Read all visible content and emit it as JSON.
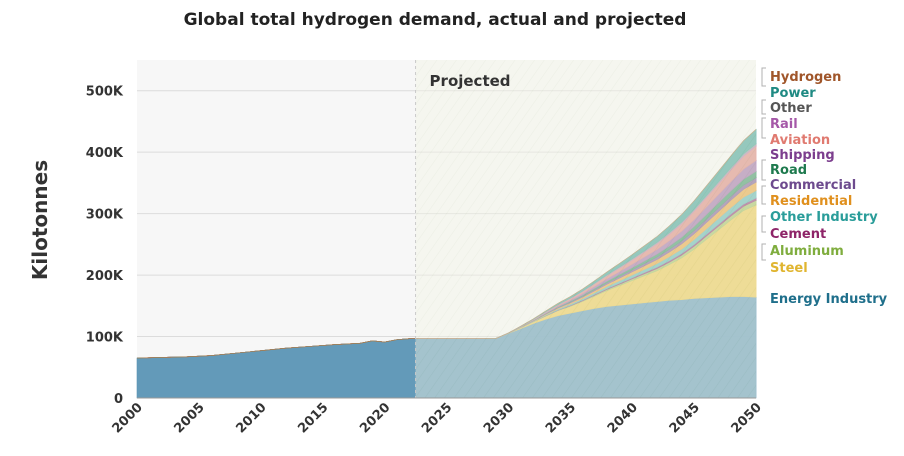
{
  "chart_data": {
    "type": "area",
    "title": "Global total hydrogen demand, actual and projected",
    "xlabel": "",
    "ylabel": "Kilotonnes",
    "xlim": [
      2000,
      2050
    ],
    "ylim": [
      0,
      550000
    ],
    "x_ticks": [
      "2000",
      "2005",
      "2010",
      "2015",
      "2020",
      "2025",
      "2030",
      "2035",
      "2040",
      "2045",
      "2050"
    ],
    "y_ticks": [
      {
        "value": 0,
        "label": "0"
      },
      {
        "value": 100000,
        "label": "100K"
      },
      {
        "value": 200000,
        "label": "200K"
      },
      {
        "value": 300000,
        "label": "300K"
      },
      {
        "value": 400000,
        "label": "400K"
      },
      {
        "value": 500000,
        "label": "500K"
      }
    ],
    "projected_start": 2022.5,
    "projected_label": "Projected",
    "x": [
      2000,
      2002,
      2004,
      2006,
      2008,
      2010,
      2012,
      2014,
      2016,
      2018,
      2019,
      2020,
      2021,
      2022,
      2023,
      2024,
      2025,
      2026,
      2027,
      2028,
      2029,
      2030,
      2031,
      2032,
      2033,
      2034,
      2035,
      2036,
      2037,
      2038,
      2039,
      2040,
      2041,
      2042,
      2043,
      2044,
      2045,
      2046,
      2047,
      2048,
      2049,
      2050
    ],
    "series": [
      {
        "name": "Energy Industry",
        "color": "#5b95b5",
        "label_color": "#1f6f8b",
        "values": [
          65000,
          66000,
          67000,
          69000,
          73000,
          77000,
          81000,
          84000,
          87000,
          89000,
          93000,
          91000,
          95000,
          96500,
          96500,
          96500,
          96500,
          96500,
          96500,
          96500,
          97000,
          105000,
          113000,
          121000,
          128000,
          134000,
          138000,
          142000,
          146000,
          149000,
          151000,
          153000,
          155000,
          157000,
          159000,
          160000,
          162000,
          163000,
          164000,
          165000,
          165000,
          164000
        ]
      },
      {
        "name": "Steel",
        "color": "#e8c44d",
        "label_color": "#e0b530",
        "values": [
          0,
          0,
          0,
          0,
          0,
          0,
          0,
          0,
          0,
          0,
          0,
          0,
          0,
          0,
          0,
          0,
          0,
          0,
          0,
          0,
          0,
          500,
          1500,
          3000,
          5000,
          8000,
          11000,
          15000,
          20000,
          26000,
          32000,
          38000,
          44000,
          50000,
          58000,
          68000,
          80000,
          95000,
          110000,
          125000,
          140000,
          150000
        ]
      },
      {
        "name": "Aluminum",
        "color": "#a0bd62",
        "label_color": "#7fad3e",
        "values": [
          0,
          0,
          0,
          0,
          0,
          0,
          0,
          0,
          0,
          0,
          0,
          0,
          0,
          0,
          0,
          0,
          0,
          0,
          0,
          0,
          0,
          0,
          0,
          0,
          500,
          700,
          1000,
          1300,
          1600,
          2000,
          2400,
          2800,
          3200,
          3600,
          4000,
          4500,
          5000,
          5500,
          6000,
          6500,
          7000,
          7500
        ]
      },
      {
        "name": "Cement",
        "color": "#8e3a78",
        "label_color": "#8e2468",
        "values": [
          0,
          0,
          0,
          0,
          0,
          0,
          0,
          0,
          0,
          0,
          0,
          0,
          0,
          0,
          0,
          0,
          0,
          0,
          0,
          0,
          0,
          0,
          0,
          0,
          400,
          500,
          800,
          1000,
          1200,
          1400,
          1600,
          1800,
          2000,
          2200,
          2400,
          2600,
          2800,
          3000,
          3200,
          3400,
          3600,
          3800
        ]
      },
      {
        "name": "Other Industry",
        "color": "#5eb3b0",
        "label_color": "#2a9d9a",
        "values": [
          0,
          0,
          0,
          0,
          0,
          0,
          0,
          0,
          0,
          0,
          0,
          0,
          0,
          0,
          0,
          0,
          0,
          0,
          0,
          0,
          0,
          300,
          500,
          800,
          1200,
          1600,
          2000,
          2500,
          3000,
          3500,
          4000,
          4600,
          5200,
          5800,
          6500,
          7200,
          8000,
          8800,
          9600,
          10400,
          11200,
          12000
        ]
      },
      {
        "name": "Residential",
        "color": "#e6a23c",
        "label_color": "#e0901e",
        "values": [
          0,
          0,
          0,
          0,
          0,
          0,
          0,
          0,
          0,
          0,
          0,
          0,
          0,
          0,
          0,
          0,
          0,
          0,
          0,
          0,
          0,
          0,
          300,
          600,
          1000,
          1400,
          1900,
          2400,
          3000,
          3600,
          4300,
          5000,
          5800,
          6600,
          7500,
          8400,
          9300,
          10200,
          11100,
          12000,
          12900,
          13800
        ]
      },
      {
        "name": "Commercial",
        "color": "#7a5b96",
        "label_color": "#6d4a8e",
        "values": [
          0,
          0,
          0,
          0,
          0,
          0,
          0,
          0,
          0,
          0,
          0,
          0,
          0,
          0,
          0,
          0,
          0,
          0,
          0,
          0,
          0,
          0,
          200,
          400,
          700,
          1000,
          1300,
          1600,
          2000,
          2400,
          2800,
          3200,
          3600,
          4000,
          4400,
          4800,
          5200,
          5600,
          6000,
          6400,
          6800,
          7200
        ]
      },
      {
        "name": "Road",
        "color": "#3a8f64",
        "label_color": "#1e7a4e",
        "values": [
          0,
          0,
          0,
          0,
          0,
          0,
          0,
          0,
          0,
          0,
          0,
          0,
          0,
          0,
          0,
          0,
          0,
          0,
          0,
          0,
          0,
          0,
          200,
          400,
          700,
          1000,
          1400,
          1800,
          2200,
          2700,
          3200,
          3700,
          4300,
          4900,
          5500,
          6200,
          6900,
          7600,
          8300,
          9000,
          9700,
          10500
        ]
      },
      {
        "name": "Shipping",
        "color": "#9c6ba8",
        "label_color": "#7c3e8e",
        "values": [
          0,
          0,
          0,
          0,
          0,
          0,
          0,
          0,
          0,
          0,
          0,
          0,
          0,
          0,
          0,
          0,
          0,
          0,
          0,
          0,
          0,
          0,
          300,
          600,
          1000,
          1500,
          2000,
          2600,
          3300,
          4000,
          4800,
          5700,
          6600,
          7600,
          8700,
          9800,
          11000,
          12300,
          13700,
          15000,
          16400,
          17800
        ]
      },
      {
        "name": "Aviation",
        "color": "#d9847c",
        "label_color": "#e07a70",
        "values": [
          0,
          0,
          0,
          0,
          0,
          0,
          0,
          0,
          0,
          0,
          0,
          0,
          0,
          0,
          0,
          0,
          0,
          0,
          0,
          0,
          0,
          0,
          300,
          600,
          1000,
          1500,
          2100,
          2800,
          3600,
          4500,
          5500,
          6600,
          7800,
          9100,
          10500,
          12000,
          13600,
          15300,
          17100,
          19000,
          21000,
          23000
        ]
      },
      {
        "name": "Rail",
        "color": "#b27bb5",
        "label_color": "#a558a8",
        "values": [
          0,
          0,
          0,
          0,
          0,
          0,
          0,
          0,
          0,
          0,
          0,
          0,
          0,
          0,
          0,
          0,
          0,
          0,
          0,
          0,
          0,
          0,
          100,
          200,
          300,
          400,
          500,
          600,
          700,
          800,
          900,
          1000,
          1100,
          1200,
          1300,
          1400,
          1500,
          1600,
          1700,
          1800,
          1900,
          2000
        ]
      },
      {
        "name": "Other",
        "color": "#9a9a9a",
        "label_color": "#555555",
        "values": [
          0,
          0,
          0,
          0,
          0,
          0,
          0,
          0,
          0,
          0,
          0,
          0,
          0,
          0,
          0,
          0,
          0,
          0,
          0,
          0,
          0,
          0,
          100,
          200,
          300,
          400,
          500,
          600,
          700,
          800,
          900,
          1000,
          1100,
          1200,
          1300,
          1400,
          1500,
          1600,
          1700,
          1800,
          1900,
          2000
        ]
      },
      {
        "name": "Power",
        "color": "#3e9f96",
        "label_color": "#1f8a83",
        "values": [
          0,
          0,
          0,
          0,
          0,
          0,
          0,
          0,
          0,
          0,
          0,
          0,
          0,
          0,
          0,
          0,
          0,
          0,
          0,
          0,
          0,
          0,
          400,
          800,
          1300,
          1900,
          2500,
          3200,
          4000,
          4900,
          5900,
          7000,
          8200,
          9500,
          10900,
          12400,
          14000,
          15700,
          17500,
          19400,
          21400,
          23500
        ]
      },
      {
        "name": "Hydrogen",
        "color": "#b5763f",
        "label_color": "#a0562a",
        "values": [
          0,
          0,
          0,
          0,
          0,
          0,
          0,
          0,
          0,
          0,
          0,
          0,
          0,
          0,
          0,
          0,
          0,
          0,
          0,
          0,
          0,
          0,
          0,
          0,
          0,
          0,
          0,
          0,
          0,
          0,
          0,
          0,
          0,
          0,
          0,
          0,
          0,
          0,
          0,
          0,
          0,
          0
        ]
      }
    ]
  }
}
